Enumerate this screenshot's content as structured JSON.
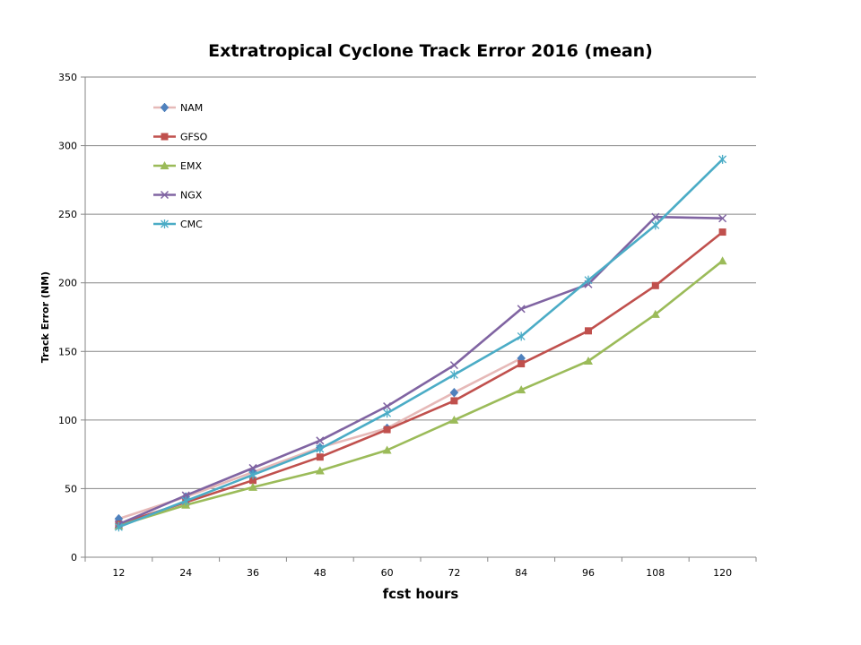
{
  "chart_data": {
    "type": "line",
    "title": "Extratropical Cyclone Track Error 2016 (mean)",
    "xlabel": "fcst hours",
    "ylabel": "Track Error  (NM)",
    "categories": [
      "12",
      "24",
      "36",
      "48",
      "60",
      "72",
      "84",
      "96",
      "108",
      "120"
    ],
    "ylim": [
      0,
      350
    ],
    "yticks": [
      0,
      50,
      100,
      150,
      200,
      250,
      300,
      350
    ],
    "grid": "horizontal",
    "legend_position": "top-left",
    "series": [
      {
        "name": "NAM",
        "color": "#4F81BD",
        "line_color": "#E6B9B8",
        "marker": "diamond",
        "values": [
          28,
          44,
          62,
          80,
          94,
          120,
          145,
          null,
          null,
          null
        ]
      },
      {
        "name": "GFSO",
        "color": "#C0504D",
        "marker": "square",
        "values": [
          24,
          40,
          56,
          73,
          93,
          114,
          141,
          165,
          198,
          237
        ]
      },
      {
        "name": "EMX",
        "color": "#9BBB59",
        "marker": "triangle",
        "values": [
          23,
          38,
          51,
          63,
          78,
          100,
          122,
          143,
          177,
          216
        ]
      },
      {
        "name": "NGX",
        "color": "#8064A2",
        "marker": "x",
        "values": [
          24,
          45,
          65,
          85,
          110,
          140,
          181,
          199,
          248,
          247
        ]
      },
      {
        "name": "CMC",
        "color": "#4BACC6",
        "marker": "star",
        "values": [
          22,
          41,
          60,
          79,
          105,
          133,
          161,
          202,
          242,
          290
        ]
      }
    ]
  }
}
